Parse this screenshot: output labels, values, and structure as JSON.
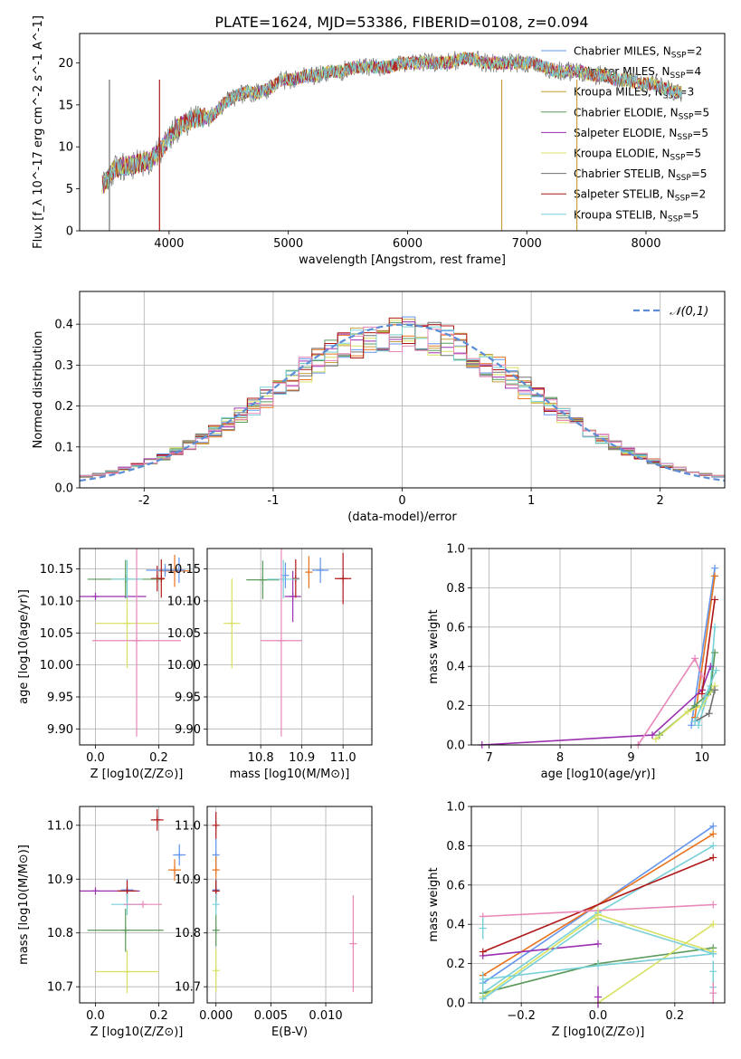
{
  "title": "PLATE=1624, MJD=53386, FIBERID=0108, z=0.094",
  "model_labels": [
    "Chabrier MILES, N_SSP=2",
    "Salpeter MILES, N_SSP=4",
    "Kroupa MILES, N_SSP=3",
    "Chabrier ELODIE, N_SSP=5",
    "Salpeter ELODIE, N_SSP=5",
    "Kroupa ELODIE, N_SSP=5",
    "Chabrier STELIB, N_SSP=5",
    "Salpeter STELIB, N_SSP=2",
    "Kroupa STELIB, N_SSP=5"
  ],
  "colors": [
    "#6495ed",
    "#e8731e",
    "#c8a040",
    "#5a9a5a",
    "#9a30b0",
    "#d8e060",
    "#707070",
    "#b01818",
    "#78d0d8"
  ],
  "chart_data": [
    {
      "id": "spectrum",
      "type": "line",
      "xlabel": "wavelength [Angstrom, rest frame]",
      "ylabel": "Flux [f_λ 10^-17 erg cm^-2 s^-1 A^-1]",
      "xlim": [
        3250,
        8660
      ],
      "ylim": [
        0,
        23.5
      ],
      "xticks": [
        4000,
        5000,
        6000,
        7000,
        8000
      ],
      "yticks": [
        0,
        5,
        10,
        15,
        20
      ],
      "grid": false,
      "legend": "right",
      "series_template_x": [
        3450,
        3550,
        3650,
        3750,
        3850,
        3950,
        4050,
        4150,
        4250,
        4350,
        4450,
        4550,
        4650,
        4750,
        4850,
        4950,
        5050,
        5150,
        5250,
        5350,
        5450,
        5550,
        5650,
        5750,
        5850,
        5950,
        6050,
        6150,
        6250,
        6350,
        6450,
        6550,
        6650,
        6750,
        6850,
        6950,
        7050,
        7150,
        7250,
        7350,
        7450,
        7550,
        7650,
        7750,
        7850,
        7950,
        8050,
        8150,
        8250
      ],
      "series_template_y": [
        5.5,
        7.5,
        7.8,
        8.0,
        8.5,
        10,
        12,
        13,
        13.5,
        13.5,
        15,
        16,
        16.5,
        16.5,
        17,
        18,
        18,
        18.5,
        18.5,
        19,
        19,
        19.5,
        19.5,
        19.5,
        19.5,
        20,
        20,
        20,
        20,
        20,
        20.5,
        20.5,
        20,
        20,
        20,
        20,
        20,
        19.5,
        19,
        19,
        19,
        18.5,
        18.5,
        18,
        18,
        17.5,
        17.5,
        17,
        16.5
      ]
    },
    {
      "id": "residuals",
      "type": "histogram",
      "xlabel": "(data-model)/error",
      "ylabel": "Normed distribution",
      "xlim": [
        -2.5,
        2.5
      ],
      "ylim": [
        0,
        0.48
      ],
      "xticks": [
        -2,
        -1,
        0,
        1,
        2
      ],
      "yticks": [
        0.0,
        0.1,
        0.2,
        0.3,
        0.4
      ],
      "grid": true,
      "legend_entry": "N(0,1)",
      "legend": "top-right",
      "bin_width": 0.1
    },
    {
      "id": "age_vs_Z",
      "type": "scatter",
      "xlabel": "Z [log10(Z/Z⊙)]",
      "ylabel": "age  [log10(age/yr)]",
      "xlim": [
        -0.05,
        0.31
      ],
      "ylim": [
        9.875,
        10.182
      ],
      "xticks": [
        0.0,
        0.2
      ],
      "yticks": [
        9.9,
        9.95,
        10.0,
        10.05,
        10.1,
        10.15
      ],
      "grid": true,
      "points": [
        {
          "x": 0.264,
          "y": 10.148,
          "xerr": 0.02,
          "yerr": 0.02
        },
        {
          "x": 0.25,
          "y": 10.147,
          "xerr": 0.05,
          "yerr": 0.025
        },
        {
          "x": 0.195,
          "y": 10.135,
          "xerr": 0.02,
          "yerr": 0.02
        },
        {
          "x": 0.095,
          "y": 10.134,
          "xerr": 0.12,
          "yerr": 0.03
        },
        {
          "x": 0.0,
          "y": 10.107,
          "xerr": 0.16,
          "yerr": 0.0
        },
        {
          "x": 0.1,
          "y": 10.065,
          "xerr": 0.1,
          "yerr": 0.07
        },
        {
          "x": 0.22,
          "y": 10.148,
          "xerr": 0.06,
          "yerr": 0.01
        },
        {
          "x": 0.208,
          "y": 10.135,
          "xerr": 0.0,
          "yerr": 0.03
        },
        {
          "x": 0.1,
          "y": 10.134,
          "xerr": 0.05,
          "yerr": 0.03
        },
        {
          "x": 0.13,
          "y": 10.038,
          "xerr": 0.14,
          "yerr": 0.15
        }
      ]
    },
    {
      "id": "age_vs_mass",
      "type": "scatter",
      "xlabel": "mass [log10(M/M⊙)]",
      "ylabel": "",
      "xlim": [
        10.67,
        11.07
      ],
      "ylim": [
        9.875,
        10.182
      ],
      "xticks": [
        10.8,
        10.9,
        11.0
      ],
      "yticks": [
        9.9,
        9.95,
        10.0,
        10.05,
        10.1,
        10.15
      ],
      "grid": true,
      "points": [
        {
          "x": 10.945,
          "y": 10.148,
          "xerr": 0.02,
          "yerr": 0.02
        },
        {
          "x": 10.917,
          "y": 10.145,
          "xerr": 0.0,
          "yerr": 0.025
        },
        {
          "x": 11.0,
          "y": 10.135,
          "xerr": 0.02,
          "yerr": 0.04
        },
        {
          "x": 10.805,
          "y": 10.133,
          "xerr": 0.04,
          "yerr": 0.03
        },
        {
          "x": 10.878,
          "y": 10.107,
          "xerr": 0.02,
          "yerr": 0.04
        },
        {
          "x": 10.73,
          "y": 10.065,
          "xerr": 0.02,
          "yerr": 0.07
        },
        {
          "x": 10.86,
          "y": 10.14,
          "xerr": 0.0,
          "yerr": 0.02
        },
        {
          "x": 10.885,
          "y": 10.135,
          "xerr": 0.0,
          "yerr": 0.03
        },
        {
          "x": 10.855,
          "y": 10.134,
          "xerr": 0.04,
          "yerr": 0.03
        },
        {
          "x": 10.85,
          "y": 10.038,
          "xerr": 0.05,
          "yerr": 0.15
        }
      ]
    },
    {
      "id": "weight_vs_age",
      "type": "line",
      "xlabel": "age  [log10(age/yr)]",
      "ylabel": "mass weight",
      "xlim": [
        6.75,
        10.32
      ],
      "ylim": [
        0,
        1.0
      ],
      "xticks": [
        7,
        8,
        9,
        10
      ],
      "yticks": [
        0.0,
        0.2,
        0.4,
        0.6,
        0.8,
        1.0
      ],
      "grid": true,
      "series": [
        {
          "x": [
            9.85,
            10.18
          ],
          "y": [
            0.1,
            0.9
          ]
        },
        {
          "x": [
            9.9,
            10.18
          ],
          "y": [
            0.14,
            0.86
          ]
        },
        {
          "x": [
            9.95,
            10.12,
            10.18
          ],
          "y": [
            0.1,
            0.3,
            0.6
          ]
        },
        {
          "x": [
            9.4,
            9.9,
            10.12,
            10.18
          ],
          "y": [
            0.05,
            0.2,
            0.27,
            0.47
          ]
        },
        {
          "x": [
            6.9,
            9.3,
            10.0,
            10.12
          ],
          "y": [
            0.0,
            0.05,
            0.28,
            0.4
          ]
        },
        {
          "x": [
            9.35,
            9.8,
            10.0,
            10.18
          ],
          "y": [
            0.03,
            0.17,
            0.2,
            0.3
          ]
        },
        {
          "x": [
            9.9,
            10.1,
            10.18
          ],
          "y": [
            0.12,
            0.16,
            0.28
          ]
        },
        {
          "x": [
            10.0,
            10.18
          ],
          "y": [
            0.26,
            0.74
          ]
        },
        {
          "x": [
            9.9,
            10.05,
            10.2
          ],
          "y": [
            0.12,
            0.25,
            0.38
          ]
        },
        {
          "x": [
            9.1,
            9.9,
            10.0
          ],
          "y": [
            0.0,
            0.44,
            0.35
          ]
        }
      ]
    },
    {
      "id": "mass_vs_Z",
      "type": "scatter",
      "xlabel": "Z [log10(Z/Z⊙)]",
      "ylabel": "mass [log10(M/M⊙)]",
      "xlim": [
        -0.05,
        0.31
      ],
      "ylim": [
        10.67,
        11.035
      ],
      "xticks": [
        0.0,
        0.2
      ],
      "yticks": [
        10.7,
        10.8,
        10.9,
        11.0
      ],
      "grid": true,
      "points": [
        {
          "x": 0.265,
          "y": 10.945,
          "xerr": 0.02,
          "yerr": 0.02
        },
        {
          "x": 0.25,
          "y": 10.917,
          "xerr": 0.02,
          "yerr": 0.02
        },
        {
          "x": 0.195,
          "y": 11.01,
          "xerr": 0.02,
          "yerr": 0.02
        },
        {
          "x": 0.095,
          "y": 10.805,
          "xerr": 0.12,
          "yerr": 0.04
        },
        {
          "x": 0.0,
          "y": 10.878,
          "xerr": 0.14,
          "yerr": 0.0
        },
        {
          "x": 0.1,
          "y": 10.728,
          "xerr": 0.1,
          "yerr": 0.04
        },
        {
          "x": 0.1,
          "y": 10.88,
          "xerr": 0.02,
          "yerr": 0.02
        },
        {
          "x": 0.1,
          "y": 10.878,
          "xerr": 0.03,
          "yerr": 0.02
        },
        {
          "x": 0.1,
          "y": 10.853,
          "xerr": 0.05,
          "yerr": 0.02
        },
        {
          "x": 0.15,
          "y": 10.853,
          "xerr": 0.06,
          "yerr": 0.0
        }
      ]
    },
    {
      "id": "mass_vs_EBV",
      "type": "scatter",
      "xlabel": "E(B-V)",
      "ylabel": "",
      "xlim": [
        -0.0008,
        0.0142
      ],
      "ylim": [
        10.67,
        11.035
      ],
      "xticks": [
        0.0,
        0.005,
        0.01
      ],
      "yticks": [
        10.7,
        10.8,
        10.9,
        11.0
      ],
      "grid": true,
      "points": [
        {
          "x": 0.0,
          "y": 10.945,
          "xerr": 0.0,
          "yerr": 0.03
        },
        {
          "x": 0.0,
          "y": 10.917,
          "xerr": 0.0,
          "yerr": 0.025
        },
        {
          "x": 0.0,
          "y": 11.0,
          "xerr": 0.0,
          "yerr": 0.025
        },
        {
          "x": 0.0,
          "y": 10.805,
          "xerr": 0.0,
          "yerr": 0.03
        },
        {
          "x": 0.0,
          "y": 10.878,
          "xerr": 0.0,
          "yerr": 0.02
        },
        {
          "x": 0.0,
          "y": 10.73,
          "xerr": 0.0,
          "yerr": 0.04
        },
        {
          "x": 0.0,
          "y": 10.88,
          "xerr": 0.0,
          "yerr": 0.02
        },
        {
          "x": 0.0,
          "y": 10.878,
          "xerr": 0.0,
          "yerr": 0.02
        },
        {
          "x": 0.0,
          "y": 10.853,
          "xerr": 0.0,
          "yerr": 0.02
        },
        {
          "x": 0.0125,
          "y": 10.78,
          "xerr": 0.0,
          "yerr": 0.09
        }
      ]
    },
    {
      "id": "weight_vs_Z",
      "type": "line",
      "xlabel": "Z [log10(Z/Z⊙)]",
      "ylabel": "mass weight",
      "xlim": [
        -0.33,
        0.33
      ],
      "ylim": [
        0,
        1.0
      ],
      "xticks": [
        -0.2,
        0.0,
        0.2
      ],
      "yticks": [
        0.0,
        0.2,
        0.4,
        0.6,
        0.8,
        1.0
      ],
      "grid": true,
      "series": [
        {
          "x": [
            -0.3,
            0.3
          ],
          "y": [
            0.1,
            0.9
          ]
        },
        {
          "x": [
            -0.3,
            0.3
          ],
          "y": [
            0.14,
            0.86
          ]
        },
        {
          "x": [
            -0.3,
            0.0,
            0.3
          ],
          "y": [
            0.05,
            0.46,
            0.8
          ]
        },
        {
          "x": [
            -0.3,
            0.0,
            0.3
          ],
          "y": [
            0.05,
            0.2,
            0.28
          ]
        },
        {
          "x": [
            -0.3,
            0.0
          ],
          "y": [
            0.24,
            0.3
          ]
        },
        {
          "x": [
            0.0,
            0.3
          ],
          "y": [
            0.0,
            0.4
          ]
        },
        {
          "x": [
            -0.3,
            0.0,
            0.3
          ],
          "y": [
            0.03,
            0.45,
            0.26
          ]
        },
        {
          "x": [
            -0.3,
            0.0,
            0.3
          ],
          "y": [
            0.02,
            0.43,
            0.25
          ]
        },
        {
          "x": [
            -0.3,
            0.3
          ],
          "y": [
            0.26,
            0.74
          ]
        },
        {
          "x": [
            -0.3,
            0.0,
            0.3
          ],
          "y": [
            0.12,
            0.19,
            0.25
          ]
        },
        {
          "x": [
            -0.3,
            0.3
          ],
          "y": [
            0.44,
            0.5
          ]
        }
      ],
      "markers": [
        {
          "x": -0.3,
          "y": 0.38
        },
        {
          "x": -0.3,
          "y": 0.1
        },
        {
          "x": 0.3,
          "y": 0.08
        },
        {
          "x": 0.3,
          "y": 0.05
        },
        {
          "x": 0.3,
          "y": 0.16
        },
        {
          "x": 0.0,
          "y": 0.03
        },
        {
          "x": 0.0,
          "y": 0.43
        }
      ]
    }
  ]
}
